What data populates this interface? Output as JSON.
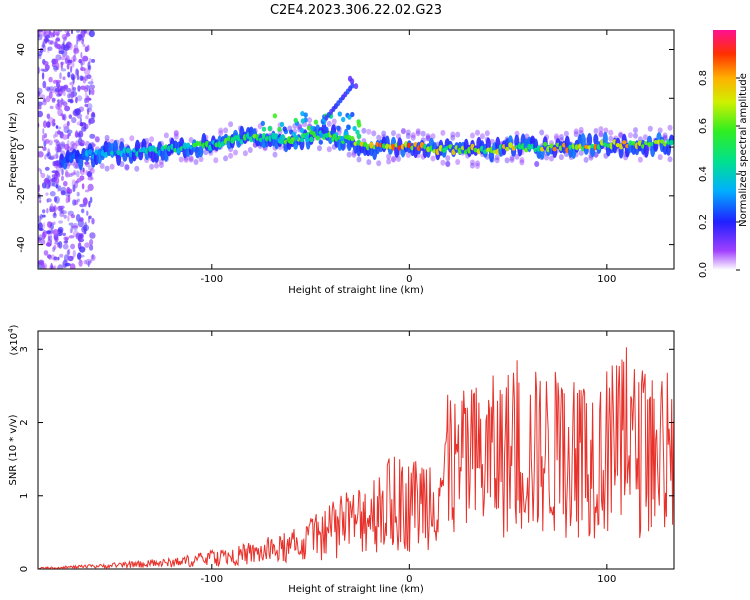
{
  "title": "C2E4.2023.306.22.02.G23",
  "chart_data": [
    {
      "type": "heatmap",
      "xlabel": "Height of straight line (km)",
      "ylabel": "Frequency (Hz)",
      "xlim": [
        -188,
        134
      ],
      "ylim": [
        -50,
        48
      ],
      "x_ticks": [
        -100,
        0,
        100
      ],
      "y_ticks": [
        40,
        20,
        0,
        -20,
        -40
      ],
      "colorbar": {
        "label": "Normalized spectral amplitude",
        "range": [
          0.0,
          1.0
        ],
        "ticks": [
          "0.0",
          "0.2",
          "0.4",
          "0.6",
          "0.8"
        ]
      },
      "band": [
        [
          -175,
          -5,
          0.25
        ],
        [
          -160,
          -3,
          0.35
        ],
        [
          -140,
          -2,
          0.45
        ],
        [
          -120,
          -1,
          0.5
        ],
        [
          -100,
          1,
          0.55
        ],
        [
          -80,
          4,
          0.6
        ],
        [
          -60,
          3,
          0.7
        ],
        [
          -45,
          5,
          0.65
        ],
        [
          -30,
          3,
          0.55
        ],
        [
          -20,
          0,
          0.8
        ],
        [
          0,
          0,
          0.85
        ],
        [
          20,
          -1,
          0.7
        ],
        [
          40,
          -1,
          0.7
        ],
        [
          60,
          0,
          0.75
        ],
        [
          80,
          0,
          0.8
        ],
        [
          100,
          1,
          0.8
        ],
        [
          120,
          1,
          0.75
        ],
        [
          134,
          2,
          0.7
        ]
      ]
    },
    {
      "type": "line",
      "xlabel": "Height of straight line (km)",
      "ylabel": "SNR (10 * v/v)",
      "y_multiplier": "(x10",
      "y_multiplier_exp": "4",
      "y_multiplier_close": ")",
      "xlim": [
        -188,
        134
      ],
      "ylim": [
        0,
        3.25
      ],
      "x_ticks": [
        -100,
        0,
        100
      ],
      "y_ticks": [
        0,
        1,
        2,
        3
      ],
      "color": "#e8312a",
      "envelope": [
        [
          -188,
          0.02
        ],
        [
          -160,
          0.06
        ],
        [
          -140,
          0.1
        ],
        [
          -120,
          0.15
        ],
        [
          -100,
          0.25
        ],
        [
          -80,
          0.35
        ],
        [
          -60,
          0.5
        ],
        [
          -40,
          0.85
        ],
        [
          -30,
          1.05
        ],
        [
          -20,
          1.35
        ],
        [
          -10,
          1.5
        ],
        [
          0,
          1.5
        ],
        [
          10,
          1.7
        ],
        [
          20,
          2.3
        ],
        [
          30,
          2.5
        ],
        [
          50,
          2.75
        ],
        [
          70,
          2.75
        ],
        [
          90,
          2.7
        ],
        [
          110,
          2.9
        ],
        [
          134,
          2.6
        ]
      ]
    }
  ]
}
